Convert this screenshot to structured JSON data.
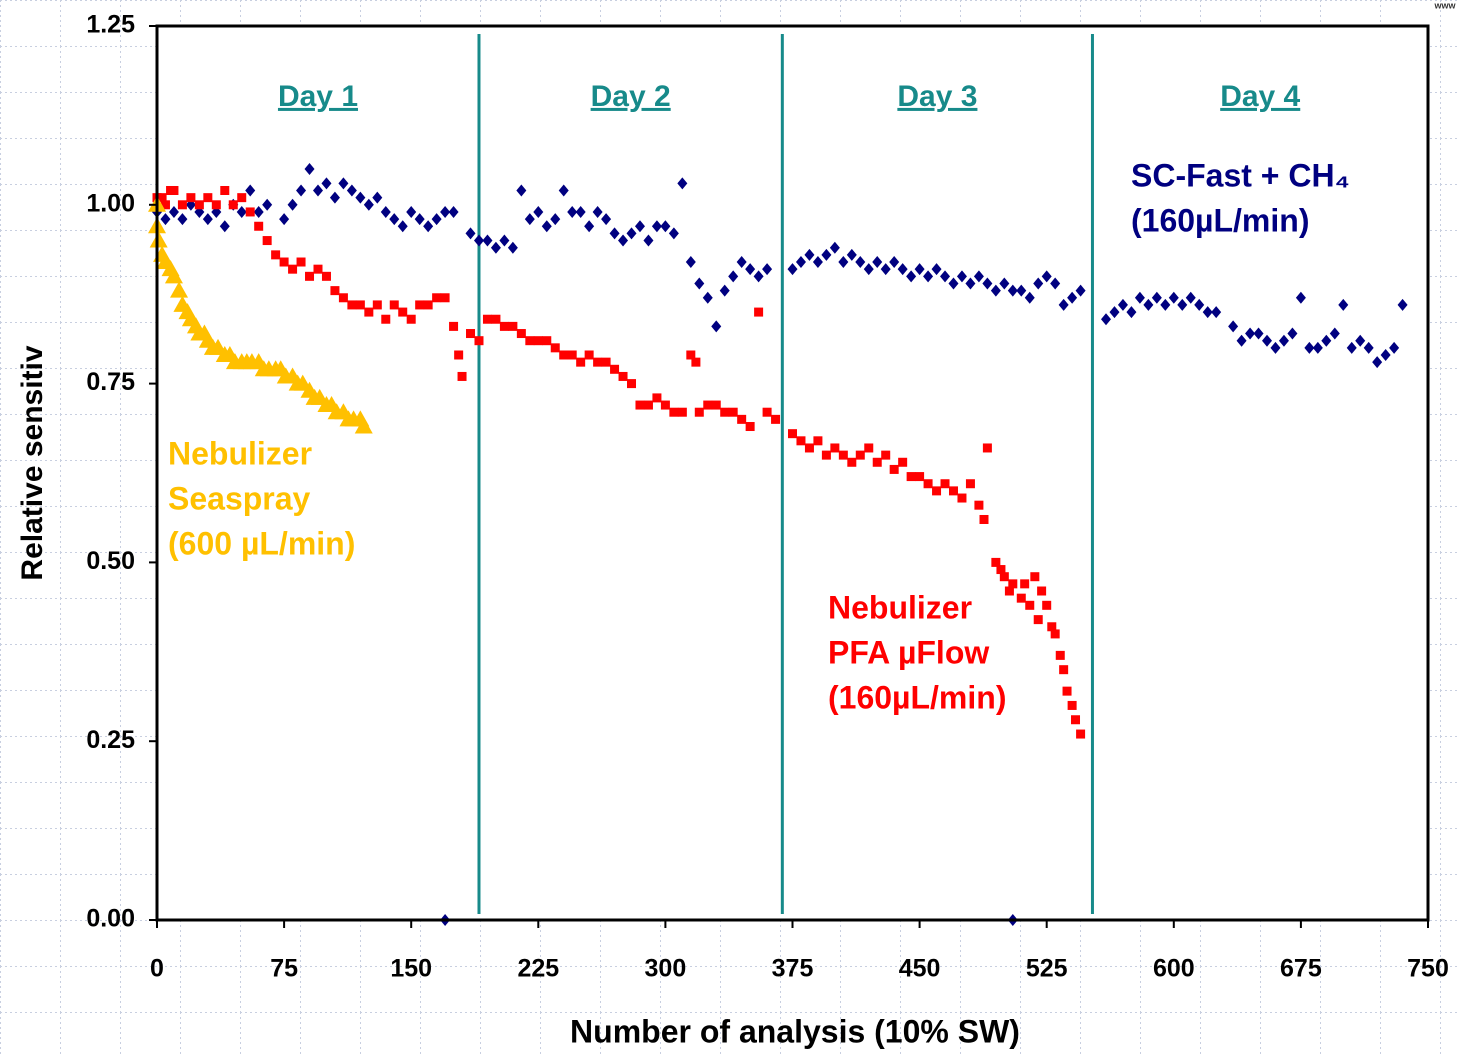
{
  "chart_data": {
    "type": "scatter",
    "y_label": "Relative sensitiv",
    "x_label": "Number of analysis (10% SW)",
    "watermark": "www",
    "xlim": [
      0,
      750
    ],
    "ylim": [
      0,
      1.25
    ],
    "xticks": [
      0,
      75,
      150,
      225,
      300,
      375,
      450,
      525,
      600,
      675,
      750
    ],
    "yticks": [
      {
        "value": 0,
        "label": "0.00"
      },
      {
        "value": 0.25,
        "label": "0.25"
      },
      {
        "value": 0.5,
        "label": "0.50"
      },
      {
        "value": 0.75,
        "label": "0.75"
      },
      {
        "value": 1,
        "label": "1.00"
      },
      {
        "value": 1.25,
        "label": "1.25"
      }
    ],
    "day_lines": [
      190,
      369,
      552
    ],
    "day_line_color": "#178a8a",
    "days": [
      "Day 1",
      "Day 2",
      "Day 3",
      "Day 4"
    ],
    "series": [
      {
        "label": [
          "SC-Fast + CH₄",
          "(160µL/min)"
        ],
        "color": "#000080",
        "marker": "diamond",
        "x": [
          0,
          5,
          10,
          15,
          20,
          25,
          30,
          35,
          40,
          45,
          50,
          55,
          60,
          65,
          75,
          80,
          85,
          90,
          95,
          100,
          105,
          110,
          115,
          120,
          125,
          130,
          135,
          140,
          145,
          150,
          155,
          160,
          165,
          170,
          175,
          185,
          190,
          195,
          200,
          205,
          210,
          215,
          220,
          225,
          230,
          235,
          240,
          245,
          250,
          255,
          260,
          265,
          270,
          275,
          280,
          285,
          290,
          295,
          300,
          305,
          310,
          315,
          320,
          325,
          330,
          335,
          340,
          345,
          350,
          355,
          360,
          375,
          380,
          385,
          390,
          395,
          400,
          405,
          410,
          415,
          420,
          425,
          430,
          435,
          440,
          445,
          450,
          455,
          460,
          465,
          470,
          475,
          480,
          485,
          490,
          495,
          500,
          505,
          510,
          515,
          520,
          525,
          530,
          535,
          540,
          545,
          560,
          565,
          570,
          575,
          580,
          585,
          590,
          595,
          600,
          605,
          610,
          615,
          620,
          625,
          635,
          640,
          645,
          650,
          655,
          660,
          665,
          670,
          675,
          680,
          685,
          690,
          695,
          700,
          705,
          710,
          715,
          720,
          725,
          730,
          735,
          170,
          505
        ],
        "values": [
          0.99,
          0.98,
          0.99,
          0.98,
          1.0,
          0.99,
          0.98,
          0.99,
          0.97,
          1.0,
          0.99,
          1.02,
          0.99,
          1.0,
          0.98,
          1.0,
          1.02,
          1.05,
          1.02,
          1.03,
          1.01,
          1.03,
          1.02,
          1.01,
          1.0,
          1.01,
          0.99,
          0.98,
          0.97,
          0.99,
          0.98,
          0.97,
          0.98,
          0.99,
          0.99,
          0.96,
          0.95,
          0.95,
          0.94,
          0.95,
          0.94,
          1.02,
          0.98,
          0.99,
          0.97,
          0.98,
          1.02,
          0.99,
          0.99,
          0.97,
          0.99,
          0.98,
          0.96,
          0.95,
          0.96,
          0.97,
          0.95,
          0.97,
          0.97,
          0.96,
          1.03,
          0.92,
          0.89,
          0.87,
          0.83,
          0.88,
          0.9,
          0.92,
          0.91,
          0.9,
          0.91,
          0.91,
          0.92,
          0.93,
          0.92,
          0.93,
          0.94,
          0.92,
          0.93,
          0.92,
          0.91,
          0.92,
          0.91,
          0.92,
          0.91,
          0.9,
          0.91,
          0.9,
          0.91,
          0.9,
          0.89,
          0.9,
          0.89,
          0.9,
          0.89,
          0.88,
          0.89,
          0.88,
          0.88,
          0.87,
          0.89,
          0.9,
          0.89,
          0.86,
          0.87,
          0.88,
          0.84,
          0.85,
          0.86,
          0.85,
          0.87,
          0.86,
          0.87,
          0.86,
          0.87,
          0.86,
          0.87,
          0.86,
          0.85,
          0.85,
          0.83,
          0.81,
          0.82,
          0.82,
          0.81,
          0.8,
          0.81,
          0.82,
          0.87,
          0.8,
          0.8,
          0.81,
          0.82,
          0.86,
          0.8,
          0.81,
          0.8,
          0.78,
          0.79,
          0.8,
          0.86,
          0.0,
          0.0
        ]
      },
      {
        "label": [
          "Nebulizer",
          "PFA µFlow",
          "(160µL/min)"
        ],
        "color": "#ff0000",
        "marker": "square",
        "x": [
          0,
          3,
          5,
          8,
          10,
          15,
          20,
          25,
          30,
          35,
          40,
          45,
          50,
          55,
          60,
          65,
          70,
          75,
          80,
          85,
          90,
          95,
          100,
          105,
          110,
          115,
          120,
          125,
          130,
          135,
          140,
          145,
          150,
          155,
          160,
          165,
          170,
          175,
          178,
          180,
          185,
          190,
          195,
          200,
          205,
          210,
          215,
          220,
          225,
          230,
          235,
          240,
          245,
          250,
          255,
          260,
          265,
          270,
          275,
          280,
          285,
          290,
          295,
          300,
          305,
          310,
          315,
          318,
          320,
          325,
          330,
          335,
          340,
          345,
          350,
          355,
          360,
          365,
          375,
          380,
          385,
          390,
          395,
          400,
          405,
          410,
          415,
          420,
          425,
          430,
          435,
          440,
          445,
          450,
          455,
          460,
          465,
          470,
          475,
          480,
          485,
          488,
          490,
          495,
          498,
          500,
          503,
          505,
          510,
          512,
          515,
          518,
          520,
          522,
          525,
          528,
          530,
          533,
          535,
          537,
          540,
          542,
          545
        ],
        "values": [
          1.01,
          1.01,
          1.0,
          1.02,
          1.02,
          1.0,
          1.01,
          1.0,
          1.01,
          1.0,
          1.02,
          1.0,
          1.01,
          0.99,
          0.97,
          0.95,
          0.93,
          0.92,
          0.91,
          0.92,
          0.9,
          0.91,
          0.9,
          0.88,
          0.87,
          0.86,
          0.86,
          0.85,
          0.86,
          0.84,
          0.86,
          0.85,
          0.84,
          0.86,
          0.86,
          0.87,
          0.87,
          0.83,
          0.79,
          0.76,
          0.82,
          0.81,
          0.84,
          0.84,
          0.83,
          0.83,
          0.82,
          0.81,
          0.81,
          0.81,
          0.8,
          0.79,
          0.79,
          0.78,
          0.79,
          0.78,
          0.78,
          0.77,
          0.76,
          0.75,
          0.72,
          0.72,
          0.73,
          0.72,
          0.71,
          0.71,
          0.79,
          0.78,
          0.71,
          0.72,
          0.72,
          0.71,
          0.71,
          0.7,
          0.69,
          0.85,
          0.71,
          0.7,
          0.68,
          0.67,
          0.66,
          0.67,
          0.65,
          0.66,
          0.65,
          0.64,
          0.65,
          0.66,
          0.64,
          0.65,
          0.63,
          0.64,
          0.62,
          0.62,
          0.61,
          0.6,
          0.61,
          0.6,
          0.59,
          0.61,
          0.58,
          0.56,
          0.66,
          0.5,
          0.49,
          0.48,
          0.46,
          0.47,
          0.45,
          0.47,
          0.44,
          0.48,
          0.42,
          0.46,
          0.44,
          0.41,
          0.4,
          0.37,
          0.35,
          0.32,
          0.3,
          0.28,
          0.26
        ]
      },
      {
        "label": [
          "Nebulizer",
          "Seaspray",
          "(600 µL/min)"
        ],
        "color": "#ffc000",
        "marker": "triangle",
        "x": [
          0,
          0,
          1,
          3,
          5,
          8,
          10,
          13,
          15,
          18,
          20,
          23,
          25,
          28,
          30,
          33,
          36,
          40,
          43,
          46,
          50,
          53,
          56,
          60,
          63,
          66,
          70,
          73,
          76,
          80,
          83,
          86,
          90,
          93,
          96,
          100,
          103,
          106,
          110,
          113,
          116,
          120,
          122
        ],
        "values": [
          1.0,
          0.97,
          0.95,
          0.93,
          0.92,
          0.91,
          0.9,
          0.88,
          0.86,
          0.85,
          0.84,
          0.83,
          0.82,
          0.82,
          0.81,
          0.8,
          0.8,
          0.79,
          0.79,
          0.78,
          0.78,
          0.78,
          0.78,
          0.78,
          0.77,
          0.77,
          0.77,
          0.77,
          0.76,
          0.76,
          0.75,
          0.75,
          0.74,
          0.73,
          0.73,
          0.72,
          0.72,
          0.71,
          0.71,
          0.7,
          0.7,
          0.7,
          0.69
        ]
      }
    ]
  }
}
